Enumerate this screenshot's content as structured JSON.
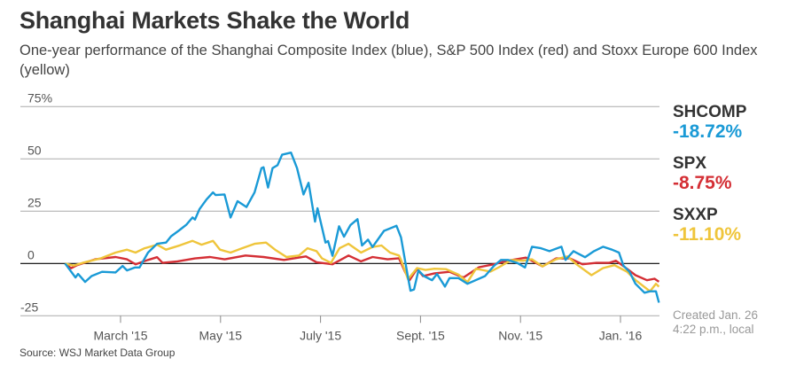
{
  "chart_data": {
    "type": "line",
    "title": "Shanghai Markets Shake the World",
    "subtitle": "One-year performance of the Shanghai Composite Index (blue), S&P 500 Index (red) and Stoxx Europe 600 Index (yellow)",
    "xlabel": "",
    "ylabel": "",
    "x_units": "months since Jan. 1, 2015",
    "xlim": [
      -0.01,
      12.8
    ],
    "ylim": [
      -25,
      75
    ],
    "grid": true,
    "yticks": [
      {
        "value": 75,
        "label": "75%"
      },
      {
        "value": 50,
        "label": "50"
      },
      {
        "value": 25,
        "label": "25"
      },
      {
        "value": 0,
        "label": "0"
      },
      {
        "value": -25,
        "label": "-25"
      }
    ],
    "xticks": [
      {
        "value": 2,
        "label": "March '15"
      },
      {
        "value": 4,
        "label": "May '15"
      },
      {
        "value": 6,
        "label": "July '15"
      },
      {
        "value": 8,
        "label": "Sept. '15"
      },
      {
        "value": 10,
        "label": "Nov. '15"
      },
      {
        "value": 12,
        "label": "Jan. '16"
      }
    ],
    "legend_placement": "right",
    "series": [
      {
        "name": "SHCOMP",
        "change": "-18.72%",
        "color": "#1a9ad6",
        "x": [
          0.89,
          1.1,
          1.15,
          1.29,
          1.42,
          1.63,
          1.9,
          2.04,
          2.13,
          2.29,
          2.38,
          2.55,
          2.73,
          2.91,
          3.01,
          3.17,
          3.32,
          3.44,
          3.49,
          3.58,
          3.72,
          3.85,
          3.9,
          4.08,
          4.2,
          4.34,
          4.52,
          4.68,
          4.82,
          4.86,
          4.95,
          5.04,
          5.14,
          5.23,
          5.41,
          5.53,
          5.66,
          5.76,
          5.89,
          5.94,
          6.1,
          6.15,
          6.24,
          6.37,
          6.47,
          6.6,
          6.74,
          6.83,
          6.95,
          7.04,
          7.27,
          7.52,
          7.61,
          7.75,
          7.8,
          7.87,
          7.96,
          8.07,
          8.23,
          8.33,
          8.49,
          8.58,
          8.76,
          8.94,
          9.29,
          9.47,
          9.61,
          9.75,
          9.93,
          10.09,
          10.23,
          10.41,
          10.58,
          10.82,
          10.9,
          11.06,
          11.29,
          11.47,
          11.65,
          11.83,
          11.97,
          12.06,
          12.18,
          12.3,
          12.48,
          12.59,
          12.71,
          12.77
        ],
        "y": [
          0,
          -6.7,
          -5,
          -8.8,
          -6,
          -4,
          -4.3,
          -1.2,
          -3.3,
          -1.9,
          -1.9,
          5.2,
          9.4,
          10,
          13,
          15.8,
          18.6,
          22,
          21,
          26,
          30.6,
          34,
          32.7,
          33,
          22,
          29.8,
          27,
          34,
          45.6,
          46,
          36.3,
          45.6,
          47,
          52,
          53,
          45.6,
          33,
          38.6,
          20,
          26.4,
          10,
          10.7,
          3.7,
          17.8,
          12.8,
          18.4,
          21.2,
          8.6,
          11.4,
          7.9,
          15.6,
          18,
          12.5,
          -6.7,
          -13,
          -12.4,
          -3.3,
          -6,
          -8,
          -5,
          -11,
          -7,
          -7,
          -9.7,
          -6,
          -1.1,
          1.7,
          1.7,
          0.3,
          -1.9,
          8,
          7.3,
          5.9,
          8,
          1.7,
          5.9,
          3,
          5.9,
          8,
          6.6,
          5.2,
          -1.1,
          -4,
          -9.7,
          -14,
          -13.3,
          -13.3,
          -18.72
        ]
      },
      {
        "name": "SPX",
        "change": "-8.75%",
        "color": "#d42f35",
        "x": [
          0.89,
          1.01,
          1.13,
          1.49,
          1.9,
          2.13,
          2.3,
          2.55,
          2.73,
          2.84,
          3.14,
          3.49,
          3.79,
          4.08,
          4.5,
          4.86,
          5.27,
          5.71,
          5.92,
          6.24,
          6.56,
          6.81,
          7.04,
          7.34,
          7.57,
          7.69,
          7.78,
          7.93,
          8.05,
          8.28,
          8.58,
          8.86,
          9.17,
          9.47,
          9.75,
          10.11,
          10.44,
          10.71,
          10.99,
          11.24,
          11.52,
          11.77,
          11.91,
          12.13,
          12.3,
          12.53,
          12.68,
          12.77
        ],
        "y": [
          0,
          -2.3,
          -0.8,
          2,
          3.1,
          2,
          -0.4,
          1.7,
          3,
          0.3,
          1,
          2.4,
          3.1,
          2,
          3.8,
          3.1,
          1.7,
          3.4,
          0.6,
          -0.4,
          3.8,
          1,
          3.1,
          2,
          2.5,
          -4,
          -8,
          -2.5,
          -6,
          -4.7,
          -4,
          -6.7,
          -1.8,
          -0.4,
          1.4,
          2.8,
          -1.4,
          2.4,
          2.4,
          -0.4,
          0.3,
          0.3,
          1.3,
          -2.5,
          -5.6,
          -8,
          -7.3,
          -8.75
        ]
      },
      {
        "name": "SXXP",
        "change": "-11.10%",
        "color": "#efc53b",
        "x": [
          0.89,
          1.06,
          1.24,
          1.6,
          1.9,
          2.13,
          2.3,
          2.48,
          2.73,
          2.91,
          3.19,
          3.44,
          3.62,
          3.85,
          3.99,
          4.2,
          4.43,
          4.68,
          4.91,
          5.09,
          5.32,
          5.57,
          5.74,
          5.92,
          6.03,
          6.21,
          6.38,
          6.56,
          6.81,
          7.04,
          7.22,
          7.39,
          7.57,
          7.61,
          7.75,
          7.93,
          8.1,
          8.28,
          8.51,
          8.76,
          8.94,
          9.11,
          9.4,
          9.57,
          9.82,
          10.05,
          10.23,
          10.44,
          10.71,
          10.94,
          11.12,
          11.42,
          11.65,
          11.88,
          12.13,
          12.3,
          12.59,
          12.71,
          12.77
        ],
        "y": [
          0,
          -1,
          0.3,
          2.4,
          5.2,
          6.6,
          5.2,
          7.3,
          9,
          6.6,
          8.7,
          10.8,
          9,
          10.8,
          6.6,
          5.2,
          7.3,
          9.4,
          10,
          6.6,
          3.1,
          3.8,
          7.3,
          5.9,
          2.4,
          0.3,
          7.3,
          9.4,
          5.2,
          7.9,
          8.6,
          5.2,
          3.8,
          1.7,
          -7.5,
          -2.2,
          -3.1,
          -2.5,
          -2.7,
          -5.3,
          -8.9,
          -2.5,
          -3.9,
          -1.8,
          1.7,
          1.3,
          2,
          -1.4,
          2,
          3.4,
          -0.4,
          -5.6,
          -2.2,
          -0.8,
          -3.9,
          -7.9,
          -13.3,
          -9.7,
          -11.1
        ]
      }
    ]
  },
  "footer": {
    "created_line1": "Created Jan. 26",
    "created_line2": "4:22 p.m., local",
    "source": "Source: WSJ Market Data Group"
  }
}
